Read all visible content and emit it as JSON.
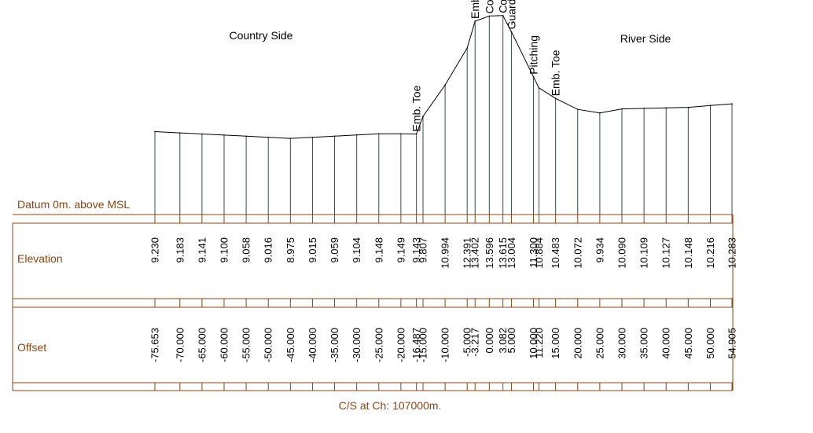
{
  "section": {
    "country_side_label": "Country Side",
    "river_side_label": "River Side",
    "datum_label": "Datum 0m. above MSL",
    "elevation_row_label": "Elevation",
    "offset_row_label": "Offset",
    "caption": "C/S at Ch: 107000m."
  },
  "colors": {
    "ground_line": "#000000",
    "stations": "#2f4f4f",
    "frame": "#8b4513",
    "table_text": "#000000",
    "label_text": "#8b4513"
  },
  "chart_data": {
    "type": "line",
    "title": "",
    "xlabel": "Offset",
    "ylabel": "Elevation",
    "datum": 0,
    "x": [
      -75.653,
      -70.0,
      -65.0,
      -60.0,
      -55.0,
      -50.0,
      -45.0,
      -40.0,
      -35.0,
      -30.0,
      -25.0,
      -20.0,
      -16.487,
      -15.0,
      -10.0,
      -5.0,
      -3.217,
      0.0,
      3.082,
      5.0,
      10.0,
      11.22,
      15.0,
      20.0,
      25.0,
      30.0,
      35.0,
      40.0,
      45.0,
      50.0,
      54.905
    ],
    "y": [
      9.23,
      9.183,
      9.141,
      9.1,
      9.058,
      9.016,
      8.975,
      9.015,
      9.059,
      9.104,
      9.148,
      9.149,
      9.143,
      9.807,
      10.994,
      12.391,
      13.402,
      13.596,
      13.615,
      13.004,
      11.3,
      10.884,
      10.483,
      10.072,
      9.934,
      10.09,
      10.109,
      10.127,
      10.148,
      10.216,
      10.283
    ],
    "x_labels": [
      "-75.653",
      "-70.000",
      "-65.000",
      "-60.000",
      "-55.000",
      "-50.000",
      "-45.000",
      "-40.000",
      "-35.000",
      "-30.000",
      "-25.000",
      "-20.000",
      "-16.487",
      "-15.000",
      "-10.000",
      "-5.000",
      "-3.217",
      "0.000",
      "3.082",
      "5.000",
      "10.000",
      "11.220",
      "15.000",
      "20.000",
      "25.000",
      "30.000",
      "35.000",
      "40.000",
      "45.000",
      "50.000",
      "54.905"
    ],
    "y_labels": [
      "9.230",
      "9.183",
      "9.141",
      "9.100",
      "9.058",
      "9.016",
      "8.975",
      "9.015",
      "9.059",
      "9.104",
      "9.148",
      "9.149",
      "9.143",
      "9.807",
      "10.994",
      "12.391",
      "13.402",
      "13.596",
      "13.615",
      "13.004",
      "11.300",
      "10.884",
      "10.483",
      "10.072",
      "9.934",
      "10.090",
      "10.109",
      "10.127",
      "10.148",
      "10.216",
      "10.283"
    ],
    "annotations": [
      {
        "label": "Emb. Toe",
        "x": -16.487
      },
      {
        "label": "Emb. Top",
        "x": -3.217
      },
      {
        "label": "Concrete Road",
        "x": 0.0
      },
      {
        "label": "Concrete Road",
        "x": 3.082
      },
      {
        "label": "Guard Wall",
        "x": 5.0
      },
      {
        "label": "Pitching",
        "x": 10.0
      },
      {
        "label": "Emb. Toe",
        "x": 15.0
      }
    ]
  }
}
